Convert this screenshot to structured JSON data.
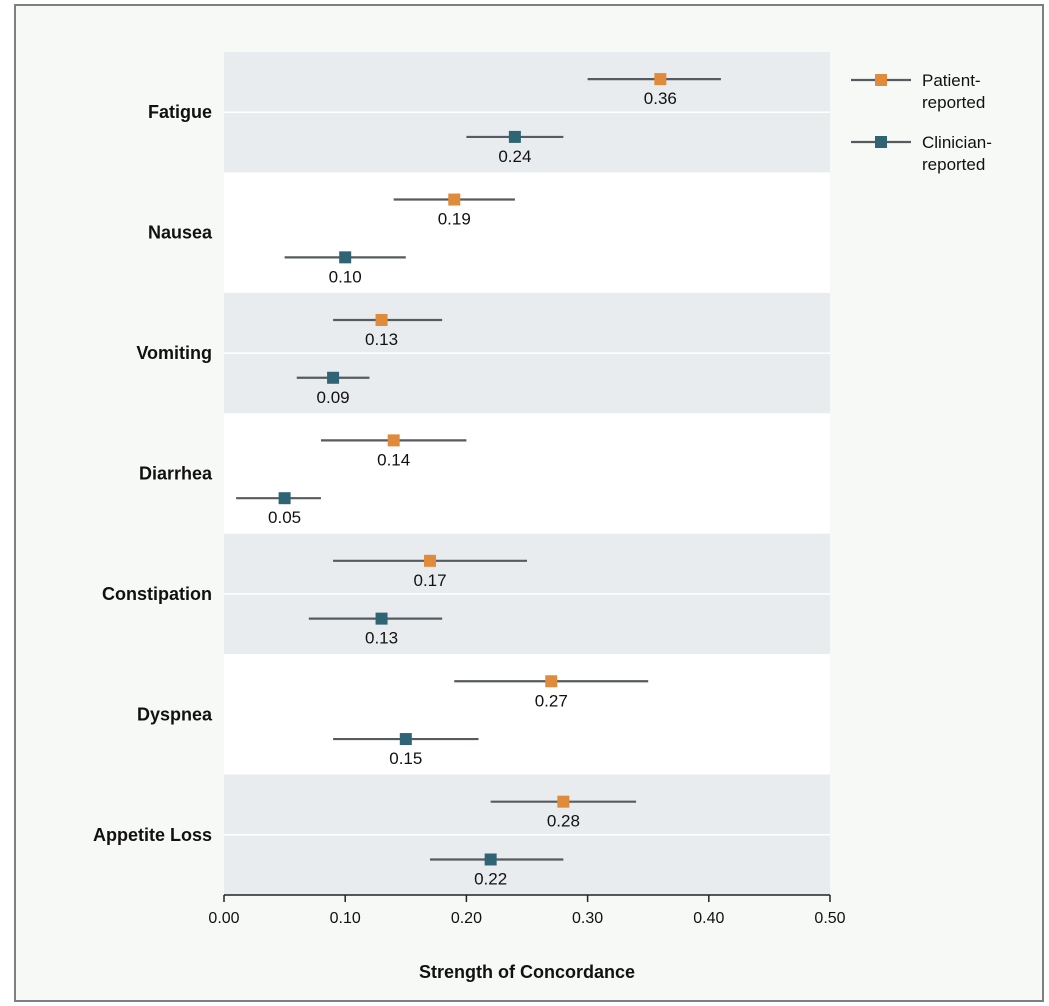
{
  "chart_data": {
    "type": "forest",
    "xlabel": "Strength of Concordance",
    "xlim": [
      0.0,
      0.5
    ],
    "x_ticks": [
      "0.00",
      "0.10",
      "0.20",
      "0.30",
      "0.40",
      "0.50"
    ],
    "x_tick_values": [
      0.0,
      0.1,
      0.2,
      0.3,
      0.4,
      0.5
    ],
    "categories": [
      "Fatigue",
      "Nausea",
      "Vomiting",
      "Diarrhea",
      "Constipation",
      "Dyspnea",
      "Appetite Loss"
    ],
    "series": [
      {
        "name": "Patient-reported",
        "legend_lines": [
          "Patient-",
          "reported"
        ],
        "color": "#e08a3c",
        "values": [
          0.36,
          0.19,
          0.13,
          0.14,
          0.17,
          0.27,
          0.28
        ],
        "labels": [
          "0.36",
          "0.19",
          "0.13",
          "0.14",
          "0.17",
          "0.27",
          "0.28"
        ],
        "ci_low": [
          0.3,
          0.14,
          0.09,
          0.08,
          0.09,
          0.19,
          0.22
        ],
        "ci_high": [
          0.41,
          0.24,
          0.18,
          0.2,
          0.25,
          0.35,
          0.34
        ]
      },
      {
        "name": "Clinician-reported",
        "legend_lines": [
          "Clinician-",
          "reported"
        ],
        "color": "#2e6473",
        "values": [
          0.24,
          0.1,
          0.09,
          0.05,
          0.13,
          0.15,
          0.22
        ],
        "labels": [
          "0.24",
          "0.10",
          "0.09",
          "0.05",
          "0.13",
          "0.15",
          "0.22"
        ],
        "ci_low": [
          0.2,
          0.05,
          0.06,
          0.01,
          0.07,
          0.09,
          0.17
        ],
        "ci_high": [
          0.28,
          0.15,
          0.12,
          0.08,
          0.18,
          0.21,
          0.28
        ]
      }
    ],
    "band_colors": [
      "#e9ecef",
      "#ffffff"
    ],
    "legend_position": "top-right"
  }
}
